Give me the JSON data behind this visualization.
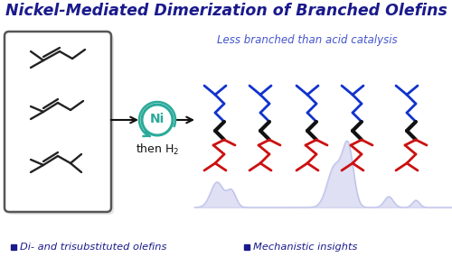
{
  "title": "Nickel-Mediated Dimerization of Branched Olefins",
  "subtitle": "Less branched than acid catalysis",
  "legend_left": "Di- and trisubstituted olefins",
  "legend_right": "Mechanistic insights",
  "title_color": "#1a1a8c",
  "subtitle_color": "#4455cc",
  "legend_color": "#1a1a8c",
  "ni_color": "#2aaa9a",
  "blue_chain": "#1133cc",
  "black_chain": "#111111",
  "red_chain": "#cc1111",
  "bg_color": "#ffffff",
  "gc_peak_color": "#b8bce8",
  "mol_color": "#222222",
  "box_color": "#555555",
  "arrow_color": "#111111"
}
